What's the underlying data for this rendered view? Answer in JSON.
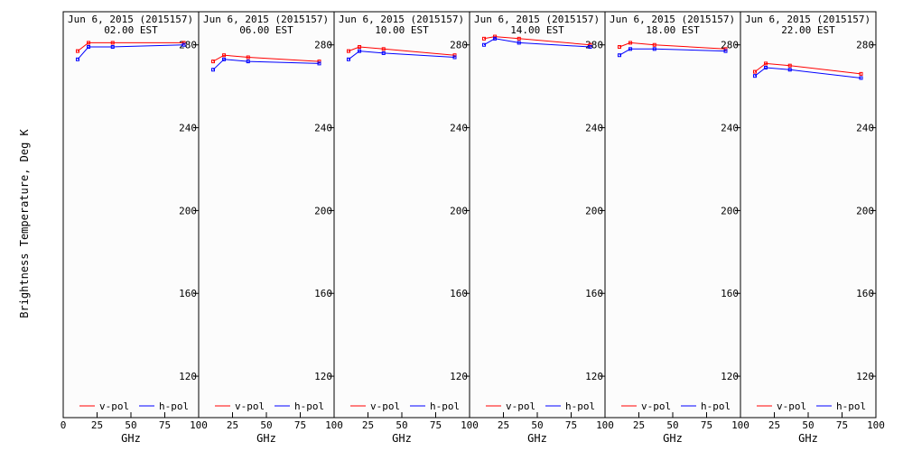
{
  "figure": {
    "ylabel": "Brightness Temperature, Deg K",
    "xlabel": "GHz",
    "background": "#fcfcfc",
    "series_colors": {
      "v-pol": "#ff0000",
      "h-pol": "#0000ff"
    }
  },
  "chart_data": [
    {
      "type": "line",
      "title": "Jun  6, 2015 (2015157)",
      "subtitle": "02.00 EST",
      "xlabel": "GHz",
      "ylabel": "Brightness Temperature, Deg K",
      "xlim": [
        0,
        100
      ],
      "ylim": [
        100,
        296
      ],
      "xticks": [
        "0",
        "25",
        "50",
        "75",
        "100"
      ],
      "yticks": [
        "120",
        "160",
        "200",
        "240",
        "280"
      ],
      "grid": false,
      "legend": "bottom",
      "x": [
        10.65,
        18.7,
        36.5,
        89.0
      ],
      "series": [
        {
          "name": "v-pol",
          "color": "#ff0000",
          "values": [
            277,
            281,
            281,
            281
          ]
        },
        {
          "name": "h-pol",
          "color": "#0000ff",
          "values": [
            273,
            279,
            279,
            280
          ]
        }
      ]
    },
    {
      "type": "line",
      "title": "Jun  6, 2015 (2015157)",
      "subtitle": "06.00 EST",
      "xlabel": "GHz",
      "ylabel": "Brightness Temperature, Deg K",
      "xlim": [
        0,
        100
      ],
      "ylim": [
        100,
        296
      ],
      "xticks": [
        "0",
        "25",
        "50",
        "75",
        "100"
      ],
      "yticks": [
        "120",
        "160",
        "200",
        "240",
        "280"
      ],
      "grid": false,
      "legend": "bottom",
      "x": [
        10.65,
        18.7,
        36.5,
        89.0
      ],
      "series": [
        {
          "name": "v-pol",
          "color": "#ff0000",
          "values": [
            272,
            275,
            274,
            272
          ]
        },
        {
          "name": "h-pol",
          "color": "#0000ff",
          "values": [
            268,
            273,
            272,
            271
          ]
        }
      ]
    },
    {
      "type": "line",
      "title": "Jun  6, 2015 (2015157)",
      "subtitle": "10.00 EST",
      "xlabel": "GHz",
      "ylabel": "Brightness Temperature, Deg K",
      "xlim": [
        0,
        100
      ],
      "ylim": [
        100,
        296
      ],
      "xticks": [
        "0",
        "25",
        "50",
        "75",
        "100"
      ],
      "yticks": [
        "120",
        "160",
        "200",
        "240",
        "280"
      ],
      "grid": false,
      "legend": "bottom",
      "x": [
        10.65,
        18.7,
        36.5,
        89.0
      ],
      "series": [
        {
          "name": "v-pol",
          "color": "#ff0000",
          "values": [
            277,
            279,
            278,
            275
          ]
        },
        {
          "name": "h-pol",
          "color": "#0000ff",
          "values": [
            273,
            277,
            276,
            274
          ]
        }
      ]
    },
    {
      "type": "line",
      "title": "Jun  6, 2015 (2015157)",
      "subtitle": "14.00 EST",
      "xlabel": "GHz",
      "ylabel": "Brightness Temperature, Deg K",
      "xlim": [
        0,
        100
      ],
      "ylim": [
        100,
        296
      ],
      "xticks": [
        "0",
        "25",
        "50",
        "75",
        "100"
      ],
      "yticks": [
        "120",
        "160",
        "200",
        "240",
        "280"
      ],
      "grid": false,
      "legend": "bottom",
      "x": [
        10.65,
        18.7,
        36.5,
        89.0
      ],
      "series": [
        {
          "name": "v-pol",
          "color": "#ff0000",
          "values": [
            283,
            284,
            283,
            280
          ]
        },
        {
          "name": "h-pol",
          "color": "#0000ff",
          "values": [
            280,
            283,
            281,
            279
          ]
        }
      ]
    },
    {
      "type": "line",
      "title": "Jun  6, 2015 (2015157)",
      "subtitle": "18.00 EST",
      "xlabel": "GHz",
      "ylabel": "Brightness Temperature, Deg K",
      "xlim": [
        0,
        100
      ],
      "ylim": [
        100,
        296
      ],
      "xticks": [
        "0",
        "25",
        "50",
        "75",
        "100"
      ],
      "yticks": [
        "120",
        "160",
        "200",
        "240",
        "280"
      ],
      "grid": false,
      "legend": "bottom",
      "x": [
        10.65,
        18.7,
        36.5,
        89.0
      ],
      "series": [
        {
          "name": "v-pol",
          "color": "#ff0000",
          "values": [
            279,
            281,
            280,
            278
          ]
        },
        {
          "name": "h-pol",
          "color": "#0000ff",
          "values": [
            275,
            278,
            278,
            277
          ]
        }
      ]
    },
    {
      "type": "line",
      "title": "Jun  6, 2015 (2015157)",
      "subtitle": "22.00 EST",
      "xlabel": "GHz",
      "ylabel": "Brightness Temperature, Deg K",
      "xlim": [
        0,
        100
      ],
      "ylim": [
        100,
        296
      ],
      "xticks": [
        "0",
        "25",
        "50",
        "75",
        "100"
      ],
      "yticks": [
        "120",
        "160",
        "200",
        "240",
        "280"
      ],
      "grid": false,
      "legend": "bottom",
      "x": [
        10.65,
        18.7,
        36.5,
        89.0
      ],
      "series": [
        {
          "name": "v-pol",
          "color": "#ff0000",
          "values": [
            267,
            271,
            270,
            266
          ]
        },
        {
          "name": "h-pol",
          "color": "#0000ff",
          "values": [
            265,
            269,
            268,
            264
          ]
        }
      ]
    }
  ]
}
